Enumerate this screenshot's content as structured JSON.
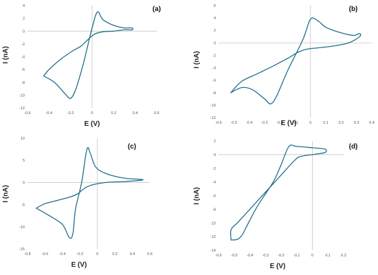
{
  "chart_data": [
    {
      "type": "line",
      "panel_label": "(a)",
      "xlabel": "E (V)",
      "ylabel": "I (nA)",
      "xlim": [
        -0.6,
        0.6
      ],
      "ylim": [
        -12,
        4
      ],
      "xticks": [
        "-0.6",
        "-0.4",
        "-0.2",
        "0",
        "0.2",
        "0.4",
        "0.6"
      ],
      "xtick_values": [
        -0.6,
        -0.4,
        -0.2,
        0,
        0.2,
        0.4,
        0.6
      ],
      "yticks": [
        "-12",
        "-10",
        "-8",
        "-6",
        "-4",
        "-2",
        "0",
        "2",
        "4"
      ],
      "ytick_values": [
        -12,
        -10,
        -8,
        -6,
        -4,
        -2,
        0,
        2,
        4
      ],
      "grid": false,
      "series": [
        {
          "x": [
            -0.45,
            -0.35,
            -0.25,
            -0.2,
            -0.15,
            -0.08,
            0.0,
            0.05,
            0.1,
            0.2,
            0.3,
            0.37,
            0.37,
            0.3,
            0.2,
            0.1,
            0.02,
            -0.05,
            -0.1,
            -0.15,
            -0.2,
            -0.3,
            -0.4,
            -0.45
          ],
          "y": [
            -7.0,
            -8.0,
            -9.8,
            -10.5,
            -9.0,
            -5.0,
            0.5,
            3.0,
            1.8,
            0.9,
            0.5,
            0.5,
            0.2,
            0.2,
            0.0,
            -0.1,
            -0.5,
            -1.5,
            -2.3,
            -2.8,
            -3.3,
            -4.5,
            -6.0,
            -7.0
          ]
        }
      ]
    },
    {
      "type": "line",
      "panel_label": "(b)",
      "xlabel": "E (V)",
      "ylabel": "I (nA)",
      "xlim": [
        -0.6,
        0.4
      ],
      "ylim": [
        -12,
        6
      ],
      "xticks": [
        "-0.6",
        "-0.5",
        "-0.4",
        "-0.3",
        "-0.2",
        "-0.1",
        "0",
        "0.1",
        "0.2",
        "0.3",
        "0.4"
      ],
      "xtick_values": [
        -0.6,
        -0.5,
        -0.4,
        -0.3,
        -0.2,
        -0.1,
        0,
        0.1,
        0.2,
        0.3,
        0.4
      ],
      "yticks": [
        "-12",
        "-10",
        "-8",
        "-6",
        "-4",
        "-2",
        "0",
        "2",
        "4",
        "6"
      ],
      "ytick_values": [
        -12,
        -10,
        -8,
        -6,
        -4,
        -2,
        0,
        2,
        4,
        6
      ],
      "grid": false,
      "series": [
        {
          "x": [
            -0.52,
            -0.45,
            -0.38,
            -0.3,
            -0.26,
            -0.22,
            -0.15,
            -0.05,
            0.0,
            0.05,
            0.1,
            0.2,
            0.28,
            0.32,
            0.32,
            0.25,
            0.15,
            0.05,
            -0.02,
            -0.08,
            -0.15,
            -0.25,
            -0.35,
            -0.45,
            -0.52
          ],
          "y": [
            -8.0,
            -7.2,
            -7.5,
            -9.0,
            -9.8,
            -8.5,
            -4.5,
            0.5,
            3.8,
            3.5,
            2.5,
            1.6,
            1.2,
            1.5,
            1.0,
            0.0,
            -0.5,
            -0.8,
            -1.0,
            -1.5,
            -2.5,
            -3.8,
            -5.0,
            -6.2,
            -8.0
          ]
        }
      ]
    },
    {
      "type": "line",
      "panel_label": "(c)",
      "xlabel": "E (V)",
      "ylabel": "I (nA)",
      "xlim": [
        -0.8,
        0.6
      ],
      "ylim": [
        -15,
        10
      ],
      "xticks": [
        "-0.8",
        "-0.6",
        "-0.4",
        "-0.2",
        "0",
        "0.2",
        "0.4",
        "0.6"
      ],
      "xtick_values": [
        -0.8,
        -0.6,
        -0.4,
        -0.2,
        0,
        0.2,
        0.4,
        0.6
      ],
      "yticks": [
        "-15",
        "-10",
        "-5",
        "0",
        "5",
        "10"
      ],
      "ytick_values": [
        -15,
        -10,
        -5,
        0,
        5,
        10
      ],
      "grid": false,
      "series": [
        {
          "x": [
            -0.7,
            -0.55,
            -0.4,
            -0.32,
            -0.28,
            -0.25,
            -0.18,
            -0.12,
            -0.08,
            -0.02,
            0.1,
            0.3,
            0.5,
            0.5,
            0.3,
            0.1,
            -0.05,
            -0.12,
            -0.18,
            -0.22,
            -0.3,
            -0.45,
            -0.6,
            -0.7
          ],
          "y": [
            -5.8,
            -7.5,
            -9.5,
            -12.5,
            -11.5,
            -6.0,
            0.0,
            7.5,
            6.5,
            3.5,
            2.0,
            1.0,
            0.7,
            0.5,
            0.2,
            0.0,
            -0.5,
            -1.0,
            -1.8,
            -2.5,
            -3.2,
            -4.0,
            -4.8,
            -5.8
          ]
        }
      ]
    },
    {
      "type": "line",
      "panel_label": "(d)",
      "xlabel": "E (V)",
      "ylabel": "I (nA)",
      "xlim": [
        -0.6,
        0.2
      ],
      "ylim": [
        -14,
        2
      ],
      "xticks": [
        "-0.6",
        "-0.5",
        "-0.4",
        "-0.3",
        "-0.2",
        "-0.1",
        "0",
        "0.1",
        "0.2"
      ],
      "xtick_values": [
        -0.6,
        -0.5,
        -0.4,
        -0.3,
        -0.2,
        -0.1,
        0,
        0.1,
        0.2
      ],
      "yticks": [
        "-14",
        "-12",
        "-10",
        "-8",
        "-6",
        "-4",
        "-2",
        "0",
        "2"
      ],
      "ytick_values": [
        -14,
        -12,
        -10,
        -8,
        -6,
        -4,
        -2,
        0,
        2
      ],
      "grid": false,
      "series": [
        {
          "x": [
            -0.52,
            -0.48,
            -0.45,
            -0.42,
            -0.35,
            -0.25,
            -0.2,
            -0.15,
            -0.1,
            0.0,
            0.08,
            0.08,
            0.0,
            -0.08,
            -0.12,
            -0.2,
            -0.3,
            -0.4,
            -0.48,
            -0.52,
            -0.52
          ],
          "y": [
            -12.5,
            -12.4,
            -11.8,
            -10.5,
            -7.5,
            -4.0,
            -1.5,
            1.2,
            1.2,
            1.0,
            0.8,
            0.3,
            0.0,
            -0.3,
            -1.0,
            -3.0,
            -5.5,
            -8.0,
            -10.0,
            -11.0,
            -12.5
          ]
        }
      ]
    }
  ],
  "colors": {
    "curve": "#1f6f8b",
    "axis": "#bdbdbd",
    "tick_text": "#555555"
  }
}
